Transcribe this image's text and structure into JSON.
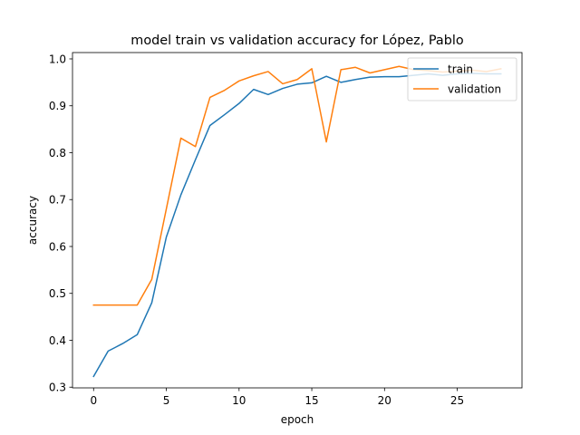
{
  "chart_data": {
    "type": "line",
    "title": "model train vs validation accuracy for López, Pablo",
    "xlabel": "epoch",
    "ylabel": "accuracy",
    "xlim": [
      -1.45,
      29.45
    ],
    "ylim": [
      0.2985,
      1.0135
    ],
    "xticks": [
      0,
      5,
      10,
      15,
      20,
      25
    ],
    "xtick_labels": [
      "0",
      "5",
      "10",
      "15",
      "20",
      "25"
    ],
    "yticks": [
      0.3,
      0.4,
      0.5,
      0.6,
      0.7,
      0.8,
      0.9,
      1.0
    ],
    "ytick_labels": [
      "0.3",
      "0.4",
      "0.5",
      "0.6",
      "0.7",
      "0.8",
      "0.9",
      "1.0"
    ],
    "grid": false,
    "legend_position": "top-right",
    "x": [
      0,
      1,
      2,
      3,
      4,
      5,
      6,
      7,
      8,
      9,
      10,
      11,
      12,
      13,
      14,
      15,
      16,
      17,
      18,
      19,
      20,
      21,
      22,
      23,
      24,
      25,
      26,
      27,
      28
    ],
    "series": [
      {
        "name": "train",
        "color": "#1f77b4",
        "values": [
          0.323,
          0.377,
          0.393,
          0.412,
          0.48,
          0.62,
          0.71,
          0.785,
          0.858,
          0.881,
          0.905,
          0.935,
          0.924,
          0.937,
          0.946,
          0.949,
          0.963,
          0.95,
          0.956,
          0.961,
          0.962,
          0.962,
          0.965,
          0.968,
          0.965,
          0.968,
          0.969,
          0.968,
          0.968
        ]
      },
      {
        "name": "validation",
        "color": "#ff7f0e",
        "values": [
          0.475,
          0.475,
          0.475,
          0.475,
          0.53,
          0.68,
          0.831,
          0.813,
          0.918,
          0.933,
          0.953,
          0.964,
          0.973,
          0.947,
          0.956,
          0.979,
          0.823,
          0.977,
          0.982,
          0.97,
          0.977,
          0.984,
          0.977,
          0.975,
          0.972,
          0.974,
          0.976,
          0.973,
          0.979
        ]
      }
    ]
  }
}
